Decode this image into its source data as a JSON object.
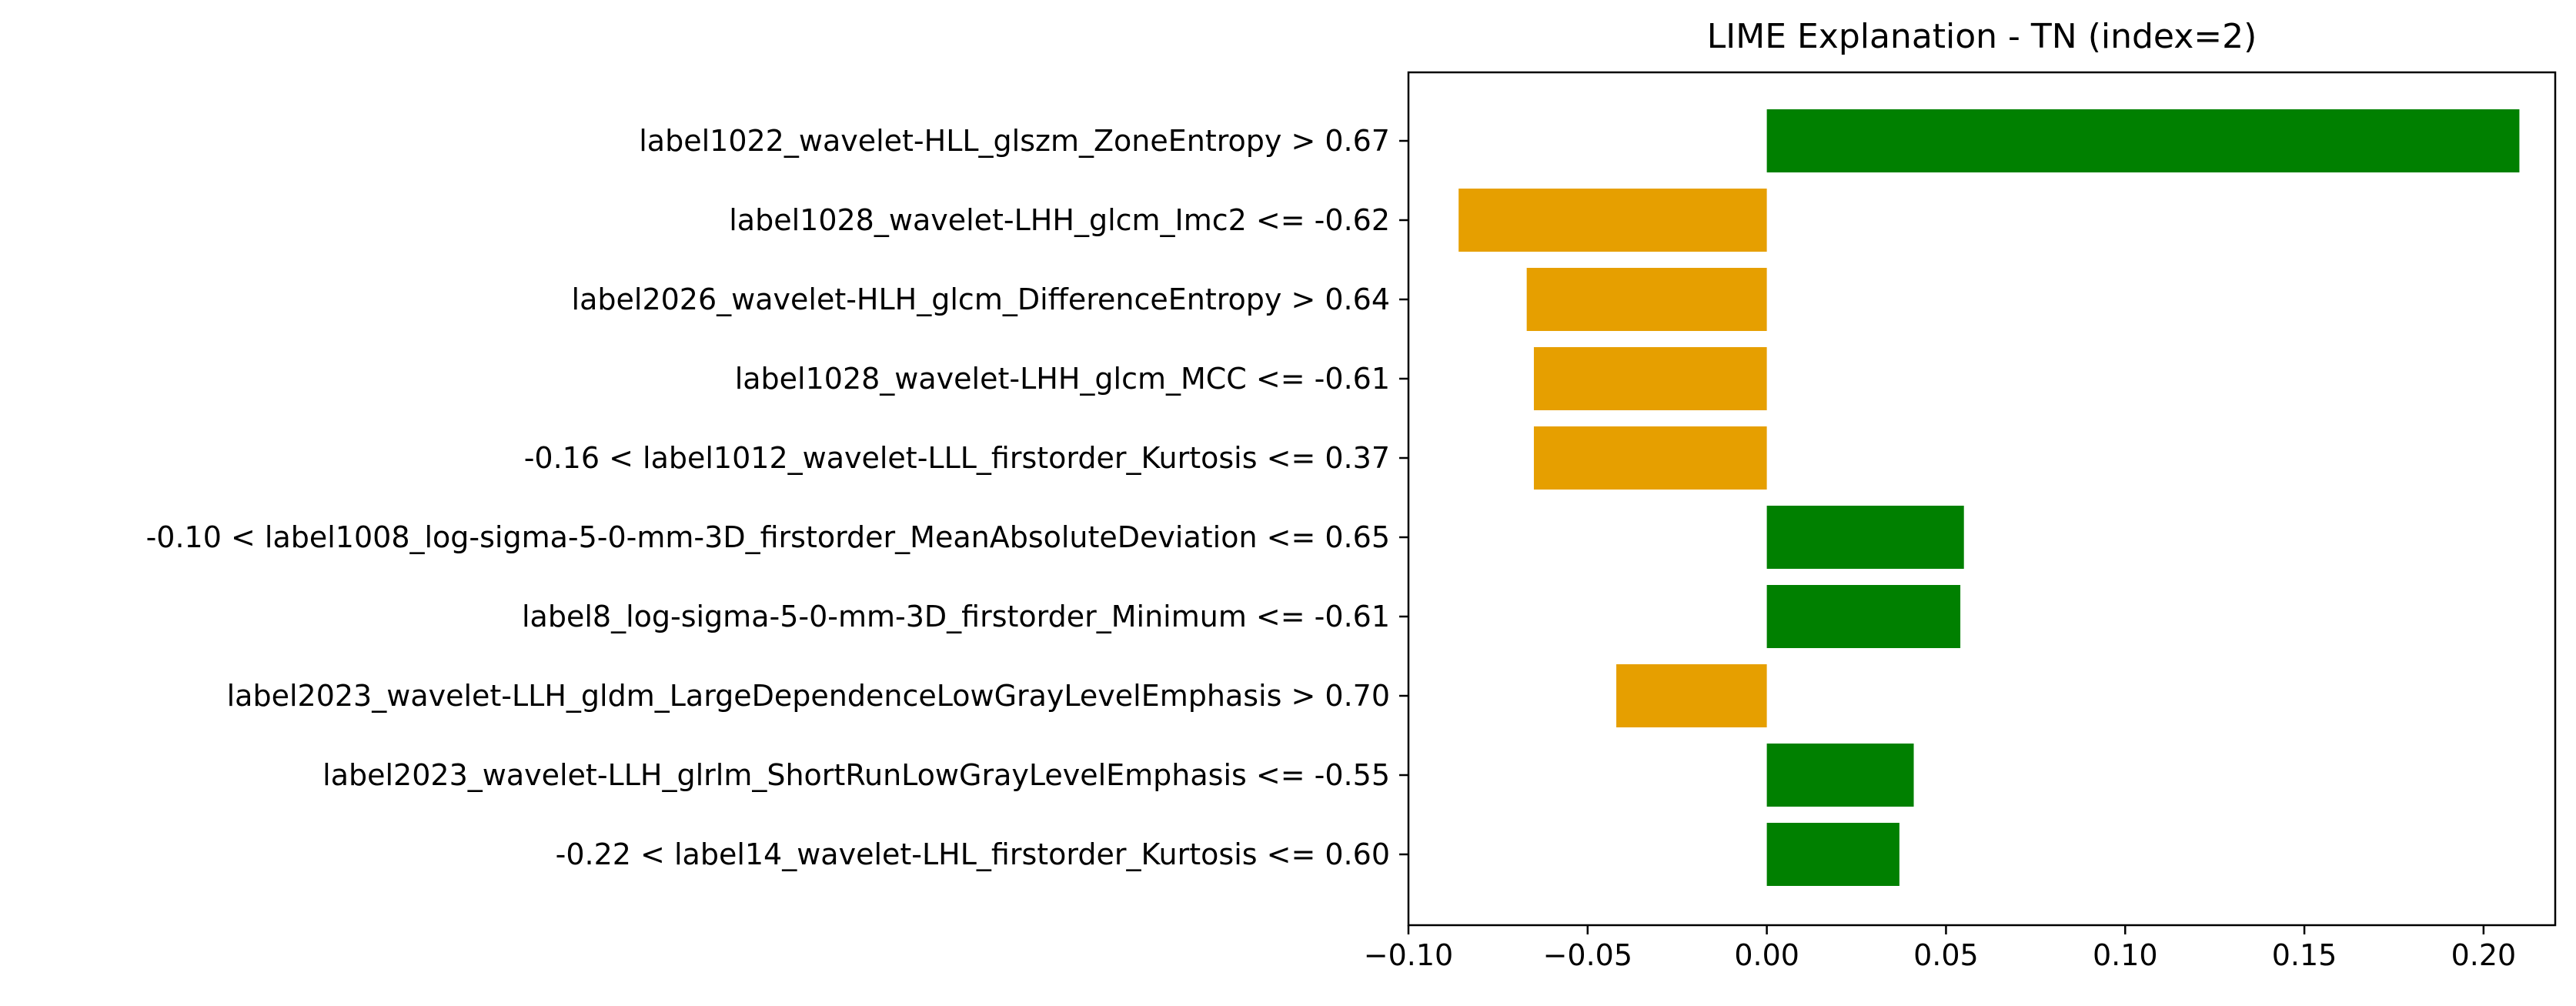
{
  "chart_data": {
    "type": "bar",
    "orientation": "horizontal",
    "title": "LIME Explanation - TN (index=2)",
    "xlabel": "",
    "ylabel": "",
    "xlim": [
      -0.1,
      0.22
    ],
    "xticks": [
      -0.1,
      -0.05,
      0.0,
      0.05,
      0.1,
      0.15,
      0.2
    ],
    "xtick_labels": [
      "−0.10",
      "−0.05",
      "0.00",
      "0.05",
      "0.10",
      "0.15",
      "0.20"
    ],
    "grid": false,
    "legend": "none",
    "colors": {
      "positive": "#008000",
      "negative": "#e69f00"
    },
    "categories": [
      "label1022_wavelet-HLL_glszm_ZoneEntropy > 0.67",
      "label1028_wavelet-LHH_glcm_Imc2 <= -0.62",
      "label2026_wavelet-HLH_glcm_DifferenceEntropy > 0.64",
      "label1028_wavelet-LHH_glcm_MCC <= -0.61",
      "-0.16 < label1012_wavelet-LLL_firstorder_Kurtosis <= 0.37",
      "-0.10 < label1008_log-sigma-5-0-mm-3D_firstorder_MeanAbsoluteDeviation <= 0.65",
      "label8_log-sigma-5-0-mm-3D_firstorder_Minimum <= -0.61",
      "label2023_wavelet-LLH_gldm_LargeDependenceLowGrayLevelEmphasis > 0.70",
      "label2023_wavelet-LLH_glrlm_ShortRunLowGrayLevelEmphasis <= -0.55",
      "-0.22 < label14_wavelet-LHL_firstorder_Kurtosis <= 0.60"
    ],
    "values": [
      0.21,
      -0.086,
      -0.067,
      -0.065,
      -0.065,
      0.055,
      0.054,
      -0.042,
      0.041,
      0.037
    ]
  }
}
